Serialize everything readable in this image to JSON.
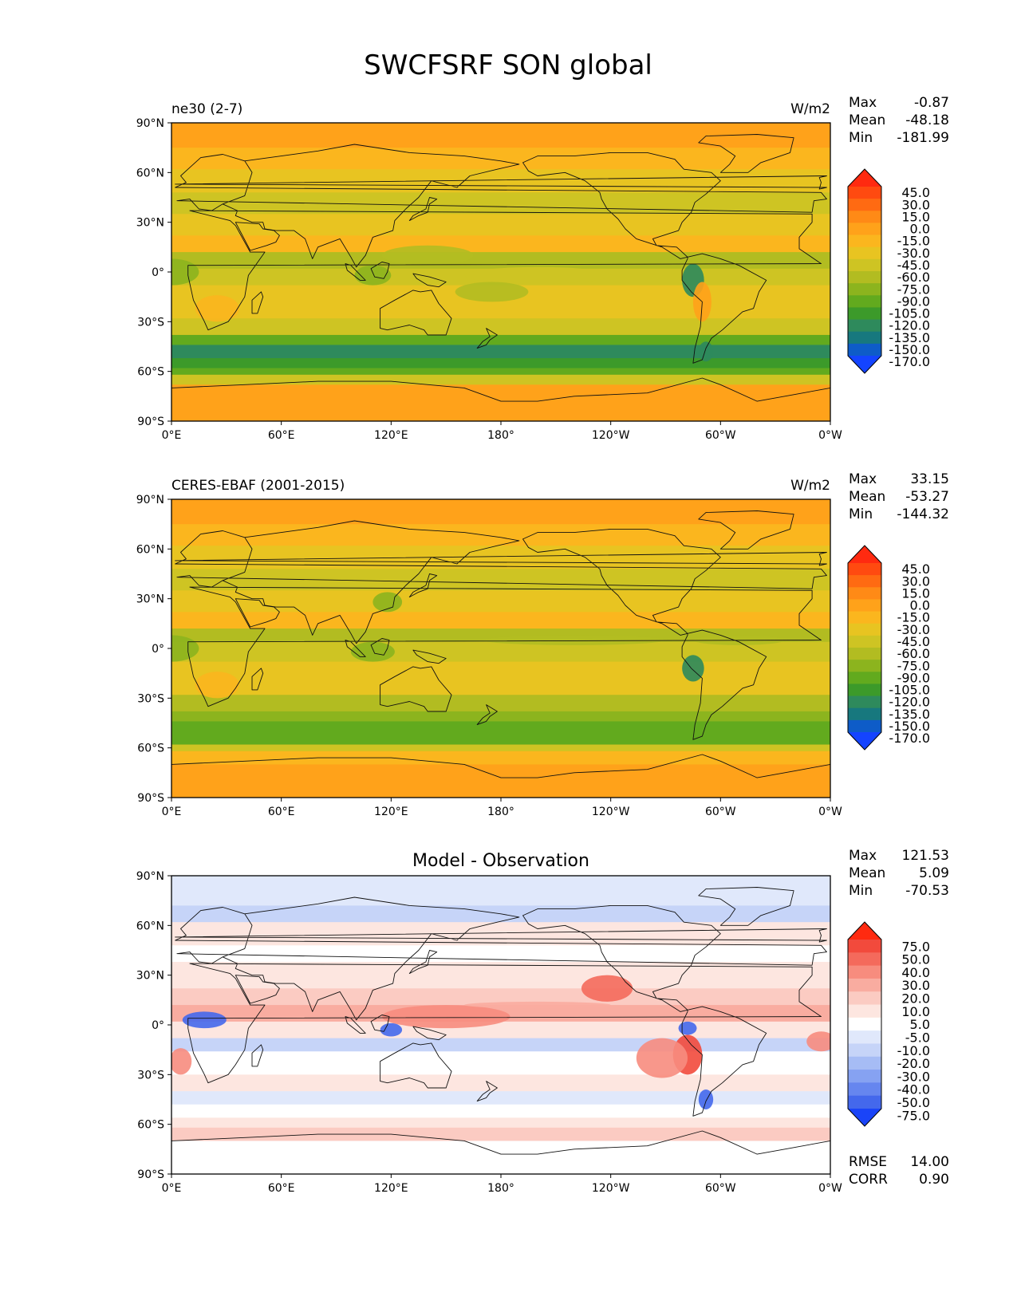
{
  "title": "SWCFSRF SON global",
  "x_ticks": [
    "0°E",
    "60°E",
    "120°E",
    "180°",
    "120°W",
    "60°W",
    "0°W"
  ],
  "y_ticks": [
    "90°N",
    "60°N",
    "30°N",
    "0°",
    "30°S",
    "60°S",
    "90°S"
  ],
  "panels": [
    {
      "left_title": "ne30 (2-7)",
      "center_title": "",
      "units": "W/m2",
      "stats": [
        [
          "Max",
          "-0.87"
        ],
        [
          "Mean",
          "-48.18"
        ],
        [
          "Min",
          "-181.99"
        ]
      ],
      "colorbar": {
        "levels": [
          "45.0",
          "30.0",
          "15.0",
          "0.0",
          "-15.0",
          "-30.0",
          "-45.0",
          "-60.0",
          "-75.0",
          "-90.0",
          "-105.0",
          "-120.0",
          "-135.0",
          "-150.0",
          "-170.0"
        ],
        "colors": [
          "#ff2a10",
          "#ff4a10",
          "#ff6a12",
          "#ff8a16",
          "#ffa21a",
          "#fbb61e",
          "#e8c421",
          "#cec423",
          "#b2bc21",
          "#8cb41e",
          "#62aa1e",
          "#3c9a2a",
          "#2e8a5c",
          "#17787e",
          "#0e5cc8",
          "#1444ff"
        ]
      }
    },
    {
      "left_title": "CERES-EBAF (2001-2015)",
      "center_title": "",
      "units": "W/m2",
      "stats": [
        [
          "Max",
          "33.15"
        ],
        [
          "Mean",
          "-53.27"
        ],
        [
          "Min",
          "-144.32"
        ]
      ],
      "colorbar": {
        "levels": [
          "45.0",
          "30.0",
          "15.0",
          "0.0",
          "-15.0",
          "-30.0",
          "-45.0",
          "-60.0",
          "-75.0",
          "-90.0",
          "-105.0",
          "-120.0",
          "-135.0",
          "-150.0",
          "-170.0"
        ],
        "colors": [
          "#ff2a10",
          "#ff4a10",
          "#ff6a12",
          "#ff8a16",
          "#ffa21a",
          "#fbb61e",
          "#e8c421",
          "#cec423",
          "#b2bc21",
          "#8cb41e",
          "#62aa1e",
          "#3c9a2a",
          "#2e8a5c",
          "#17787e",
          "#0e5cc8",
          "#1444ff"
        ]
      }
    },
    {
      "left_title": "",
      "center_title": "Model - Observation",
      "units": "",
      "stats": [
        [
          "Max",
          "121.53"
        ],
        [
          "Mean",
          "5.09"
        ],
        [
          "Min",
          "-70.53"
        ]
      ],
      "colorbar": {
        "levels": [
          "75.0",
          "50.0",
          "40.0",
          "30.0",
          "20.0",
          "10.0",
          "5.0",
          "-5.0",
          "-10.0",
          "-20.0",
          "-30.0",
          "-40.0",
          "-50.0",
          "-75.0"
        ],
        "colors": [
          "#ff2a10",
          "#f24a3c",
          "#f46a5c",
          "#f78c7e",
          "#f9aca0",
          "#fbcbc2",
          "#fde6e0",
          "#ffffff",
          "#e0e8fb",
          "#c6d4f8",
          "#a6bcf5",
          "#86a2f2",
          "#6686ef",
          "#4468ec",
          "#1a44f8"
        ]
      },
      "extra_stats": [
        [
          "RMSE",
          "14.00"
        ],
        [
          "CORR",
          "0.90"
        ]
      ]
    }
  ],
  "chart_data": [
    {
      "type": "heatmap",
      "title": "ne30 (2-7)",
      "units": "W/m2",
      "x_range": [
        0,
        360
      ],
      "y_range": [
        -90,
        90
      ],
      "stats": {
        "max": -0.87,
        "mean": -48.18,
        "min": -181.99
      },
      "levels": [
        -170,
        -150,
        -135,
        -120,
        -105,
        -90,
        -75,
        -60,
        -45,
        -30,
        -15,
        0,
        15,
        30,
        45
      ]
    },
    {
      "type": "heatmap",
      "title": "CERES-EBAF (2001-2015)",
      "units": "W/m2",
      "x_range": [
        0,
        360
      ],
      "y_range": [
        -90,
        90
      ],
      "stats": {
        "max": 33.15,
        "mean": -53.27,
        "min": -144.32
      },
      "levels": [
        -170,
        -150,
        -135,
        -120,
        -105,
        -90,
        -75,
        -60,
        -45,
        -30,
        -15,
        0,
        15,
        30,
        45
      ]
    },
    {
      "type": "heatmap",
      "title": "Model - Observation",
      "x_range": [
        0,
        360
      ],
      "y_range": [
        -90,
        90
      ],
      "stats": {
        "max": 121.53,
        "mean": 5.09,
        "min": -70.53,
        "rmse": 14.0,
        "corr": 0.9
      },
      "levels": [
        -75,
        -50,
        -40,
        -30,
        -20,
        -10,
        -5,
        5,
        10,
        20,
        30,
        40,
        50,
        75
      ]
    }
  ]
}
